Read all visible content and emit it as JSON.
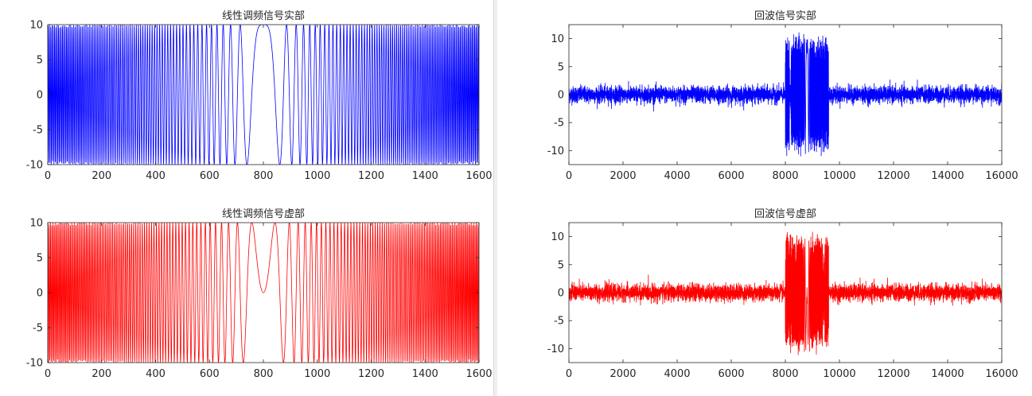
{
  "figures": [
    {
      "panel": "left",
      "charts": [
        {
          "type": "line",
          "title": "线性调频信号实部",
          "color": "#0000ff",
          "x_range": [
            0,
            1600
          ],
          "ylim": [
            -10,
            10
          ],
          "x_ticks": [
            0,
            200,
            400,
            600,
            800,
            1000,
            1200,
            1400,
            1600
          ],
          "y_ticks": [
            -10,
            -5,
            0,
            5,
            10
          ],
          "signal": "chirp_real",
          "amplitude": 10
        },
        {
          "type": "line",
          "title": "线性调频信号虚部",
          "color": "#ff0000",
          "x_range": [
            0,
            1600
          ],
          "ylim": [
            -10,
            10
          ],
          "x_ticks": [
            0,
            200,
            400,
            600,
            800,
            1000,
            1200,
            1400,
            1600
          ],
          "y_ticks": [
            -10,
            -5,
            0,
            5,
            10
          ],
          "signal": "chirp_imag",
          "amplitude": 10
        }
      ]
    },
    {
      "panel": "right",
      "charts": [
        {
          "type": "line",
          "title": "回波信号实部",
          "color": "#0000ff",
          "x_range": [
            0,
            16000
          ],
          "ylim": [
            -12.5,
            12.5
          ],
          "x_ticks": [
            0,
            2000,
            4000,
            6000,
            8000,
            10000,
            12000,
            14000,
            16000
          ],
          "y_ticks": [
            -10,
            -5,
            0,
            5,
            10
          ],
          "signal": "echo_real",
          "noise_level": 2.5,
          "echo_start": 8000,
          "echo_end": 9600,
          "echo_amplitude": 10
        },
        {
          "type": "line",
          "title": "回波信号虚部",
          "color": "#ff0000",
          "x_range": [
            0,
            16000
          ],
          "ylim": [
            -12.5,
            12.5
          ],
          "x_ticks": [
            0,
            2000,
            4000,
            6000,
            8000,
            10000,
            12000,
            14000,
            16000
          ],
          "y_ticks": [
            -10,
            -5,
            0,
            5,
            10
          ],
          "signal": "echo_imag",
          "noise_level": 2.5,
          "echo_start": 8000,
          "echo_end": 9600,
          "echo_amplitude": 10
        }
      ]
    }
  ]
}
